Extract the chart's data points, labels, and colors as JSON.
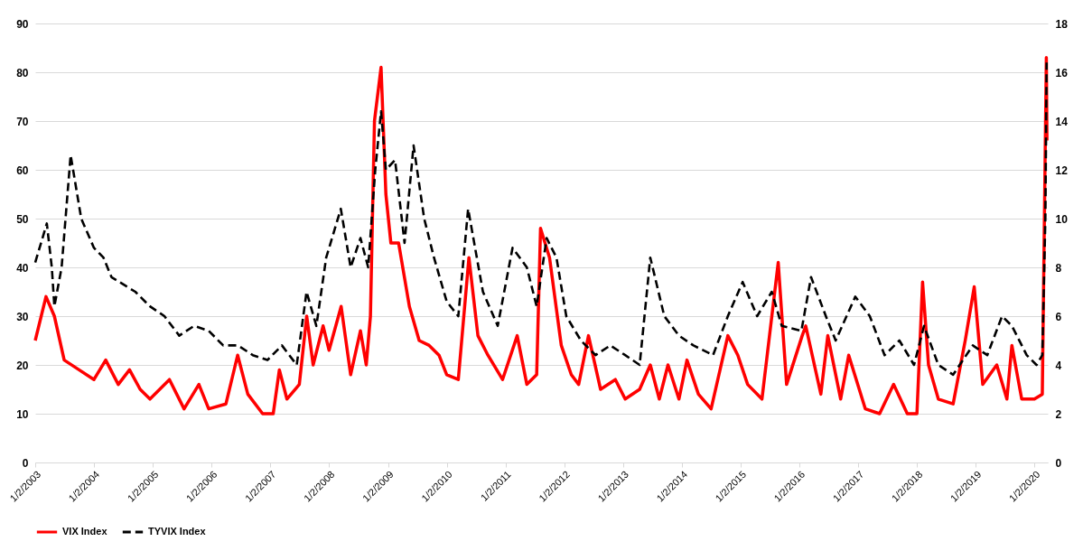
{
  "chart_data": {
    "type": "line",
    "xlim": [
      "2003-01-02",
      "2020-03-25"
    ],
    "xticks": [
      {
        "value": "2003-01-02",
        "label": "1/2/2003"
      },
      {
        "value": "2004-01-02",
        "label": "1/2/2004"
      },
      {
        "value": "2005-01-02",
        "label": "1/2/2005"
      },
      {
        "value": "2006-01-02",
        "label": "1/2/2006"
      },
      {
        "value": "2007-01-02",
        "label": "1/2/2007"
      },
      {
        "value": "2008-01-02",
        "label": "1/2/2008"
      },
      {
        "value": "2009-01-02",
        "label": "1/2/2009"
      },
      {
        "value": "2010-01-02",
        "label": "1/2/2010"
      },
      {
        "value": "2011-01-02",
        "label": "1/2/2011"
      },
      {
        "value": "2012-01-02",
        "label": "1/2/2012"
      },
      {
        "value": "2013-01-02",
        "label": "1/2/2013"
      },
      {
        "value": "2014-01-02",
        "label": "1/2/2014"
      },
      {
        "value": "2015-01-02",
        "label": "1/2/2015"
      },
      {
        "value": "2016-01-02",
        "label": "1/2/2016"
      },
      {
        "value": "2017-01-02",
        "label": "1/2/2017"
      },
      {
        "value": "2018-01-02",
        "label": "1/2/2018"
      },
      {
        "value": "2019-01-02",
        "label": "1/2/2019"
      },
      {
        "value": "2020-01-02",
        "label": "1/2/2020"
      }
    ],
    "ylim": [
      0,
      90
    ],
    "yticks": [
      0,
      10,
      20,
      30,
      40,
      50,
      60,
      70,
      80,
      90
    ],
    "y2lim": [
      0,
      18
    ],
    "y2ticks": [
      0,
      2,
      4,
      6,
      8,
      10,
      12,
      14,
      16,
      18
    ],
    "grid": "y",
    "legend": "bottom",
    "series": [
      {
        "name": "VIX Index",
        "color": "#ff0000",
        "line_style": "solid",
        "x": [
          "2003-01-02",
          "2003-03-10",
          "2003-05-01",
          "2003-07-01",
          "2003-10-01",
          "2004-01-02",
          "2004-03-15",
          "2004-06-01",
          "2004-08-10",
          "2004-10-15",
          "2004-12-15",
          "2005-04-15",
          "2005-07-15",
          "2005-10-15",
          "2005-12-15",
          "2006-04-01",
          "2006-06-13",
          "2006-08-15",
          "2006-11-15",
          "2007-01-20",
          "2007-02-27",
          "2007-04-15",
          "2007-07-01",
          "2007-08-16",
          "2007-09-25",
          "2007-11-26",
          "2008-01-02",
          "2008-03-17",
          "2008-05-15",
          "2008-07-15",
          "2008-08-20",
          "2008-09-15",
          "2008-10-10",
          "2008-11-20",
          "2008-12-20",
          "2009-01-20",
          "2009-03-09",
          "2009-05-15",
          "2009-07-15",
          "2009-09-15",
          "2009-11-15",
          "2010-01-02",
          "2010-03-15",
          "2010-05-20",
          "2010-07-15",
          "2010-09-15",
          "2010-12-15",
          "2011-03-16",
          "2011-05-15",
          "2011-07-15",
          "2011-08-08",
          "2011-10-03",
          "2011-12-15",
          "2012-02-15",
          "2012-04-01",
          "2012-06-01",
          "2012-08-15",
          "2012-11-15",
          "2013-01-15",
          "2013-04-15",
          "2013-06-20",
          "2013-08-15",
          "2013-10-08",
          "2013-12-15",
          "2014-02-03",
          "2014-04-15",
          "2014-07-03",
          "2014-10-15",
          "2014-12-16",
          "2015-02-15",
          "2015-05-15",
          "2015-08-24",
          "2015-10-15",
          "2016-01-20",
          "2016-02-11",
          "2016-05-15",
          "2016-06-27",
          "2016-09-15",
          "2016-11-04",
          "2017-02-15",
          "2017-05-15",
          "2017-08-10",
          "2017-11-03",
          "2018-01-02",
          "2018-02-06",
          "2018-03-15",
          "2018-05-15",
          "2018-08-15",
          "2018-10-29",
          "2018-12-24",
          "2019-02-15",
          "2019-05-13",
          "2019-07-15",
          "2019-08-15",
          "2019-10-15",
          "2020-01-02",
          "2020-02-20",
          "2020-03-16",
          "2020-03-20"
        ],
        "values": [
          25,
          34,
          30,
          21,
          19,
          17,
          21,
          16,
          19,
          15,
          13,
          17,
          11,
          16,
          11,
          12,
          22,
          14,
          10,
          10,
          19,
          13,
          16,
          30,
          20,
          28,
          23,
          32,
          18,
          27,
          20,
          30,
          70,
          81,
          55,
          45,
          45,
          32,
          25,
          24,
          22,
          18,
          17,
          42,
          26,
          22,
          17,
          26,
          16,
          18,
          48,
          42,
          24,
          18,
          16,
          26,
          15,
          17,
          13,
          15,
          20,
          13,
          20,
          13,
          21,
          14,
          11,
          26,
          22,
          16,
          13,
          41,
          16,
          26,
          28,
          14,
          26,
          13,
          22,
          11,
          10,
          16,
          10,
          10,
          37,
          20,
          13,
          12,
          25,
          36,
          16,
          20,
          13,
          24,
          13,
          13,
          14,
          83,
          66
        ]
      },
      {
        "name": "TYVIX Index",
        "color": "#000000",
        "line_style": "dashed",
        "axis": "y2",
        "x": [
          "2003-01-02",
          "2003-03-15",
          "2003-04-15",
          "2003-05-01",
          "2003-06-15",
          "2003-08-10",
          "2003-10-15",
          "2004-01-02",
          "2004-03-01",
          "2004-04-20",
          "2004-09-15",
          "2004-12-15",
          "2005-03-15",
          "2005-06-15",
          "2005-09-15",
          "2005-12-15",
          "2006-03-15",
          "2006-06-15",
          "2006-09-15",
          "2006-12-15",
          "2007-03-15",
          "2007-06-15",
          "2007-08-15",
          "2007-10-15",
          "2007-12-15",
          "2008-03-15",
          "2008-05-15",
          "2008-07-15",
          "2008-09-01",
          "2008-10-15",
          "2008-11-20",
          "2008-12-20",
          "2009-02-15",
          "2009-04-15",
          "2009-06-10",
          "2009-08-15",
          "2009-10-15",
          "2010-01-02",
          "2010-03-15",
          "2010-05-15",
          "2010-08-15",
          "2010-11-15",
          "2011-02-15",
          "2011-05-15",
          "2011-07-15",
          "2011-09-15",
          "2011-11-15",
          "2012-01-15",
          "2012-04-15",
          "2012-07-15",
          "2012-10-15",
          "2013-01-15",
          "2013-04-15",
          "2013-06-20",
          "2013-09-15",
          "2013-12-15",
          "2014-03-15",
          "2014-07-15",
          "2014-10-15",
          "2015-01-15",
          "2015-04-15",
          "2015-07-15",
          "2015-09-15",
          "2016-01-15",
          "2016-03-15",
          "2016-06-15",
          "2016-08-15",
          "2016-12-15",
          "2017-03-15",
          "2017-06-15",
          "2017-09-15",
          "2017-12-15",
          "2018-02-15",
          "2018-05-15",
          "2018-08-15",
          "2018-12-15",
          "2019-03-15",
          "2019-06-15",
          "2019-08-15",
          "2019-11-15",
          "2020-01-15",
          "2020-02-20",
          "2020-03-10",
          "2020-03-18"
        ],
        "values": [
          8.2,
          9.8,
          8.0,
          6.4,
          8.0,
          12.6,
          10.0,
          8.8,
          8.4,
          7.6,
          7.0,
          6.4,
          6.0,
          5.2,
          5.6,
          5.4,
          4.8,
          4.8,
          4.4,
          4.2,
          4.8,
          4.0,
          7.0,
          5.6,
          8.4,
          10.4,
          8.0,
          9.2,
          8.0,
          12.0,
          14.4,
          12.0,
          12.4,
          9.0,
          13.0,
          10.0,
          8.4,
          6.6,
          6.0,
          10.4,
          7.0,
          5.6,
          8.8,
          8.0,
          6.4,
          9.2,
          8.4,
          6.0,
          5.0,
          4.4,
          4.8,
          4.4,
          4.0,
          8.4,
          6.0,
          5.2,
          4.8,
          4.4,
          6.0,
          7.4,
          6.0,
          7.0,
          5.6,
          5.4,
          7.6,
          6.0,
          5.0,
          6.8,
          6.0,
          4.4,
          5.0,
          4.0,
          5.6,
          4.0,
          3.6,
          4.8,
          4.4,
          6.0,
          5.6,
          4.4,
          4.0,
          4.4,
          10.0,
          16.4
        ]
      }
    ]
  }
}
